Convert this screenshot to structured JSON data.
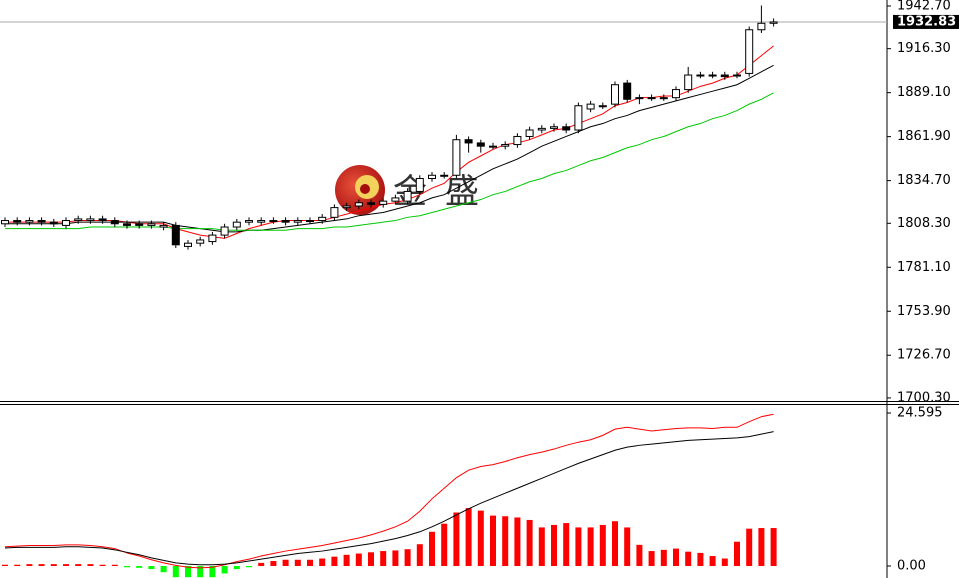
{
  "chart_data": [
    {
      "type": "candlestick",
      "watermark": "金盛",
      "open": [
        1808,
        1810,
        1809,
        1810,
        1809,
        1807,
        1810,
        1810,
        1811,
        1810,
        1808,
        1808,
        1807,
        1806,
        1807,
        1794,
        1796,
        1797,
        1801,
        1806,
        1809,
        1809,
        1810,
        1810,
        1809,
        1810,
        1810,
        1812,
        1818,
        1819,
        1821,
        1820,
        1822,
        1822,
        1828,
        1836,
        1838,
        1838,
        1860,
        1858,
        1856,
        1856,
        1857,
        1862,
        1866,
        1867,
        1868,
        1866,
        1879,
        1881,
        1882,
        1895,
        1886,
        1886,
        1886,
        1886,
        1891,
        1900,
        1900,
        1900,
        1900,
        1901,
        1928,
        1932
      ],
      "high": [
        1812,
        1812,
        1812,
        1812,
        1811,
        1812,
        1813,
        1813,
        1813,
        1812,
        1810,
        1810,
        1810,
        1809,
        1809,
        1798,
        1800,
        1803,
        1808,
        1811,
        1812,
        1812,
        1812,
        1812,
        1812,
        1812,
        1814,
        1820,
        1821,
        1823,
        1823,
        1824,
        1826,
        1830,
        1838,
        1840,
        1840,
        1863,
        1862,
        1860,
        1858,
        1859,
        1864,
        1868,
        1869,
        1870,
        1870,
        1883,
        1884,
        1883,
        1896,
        1897,
        1888,
        1888,
        1888,
        1893,
        1905,
        1902,
        1902,
        1902,
        1902,
        1930,
        1943,
        1935
      ],
      "low": [
        1806,
        1807,
        1807,
        1807,
        1806,
        1805,
        1808,
        1808,
        1808,
        1806,
        1805,
        1805,
        1805,
        1804,
        1793,
        1792,
        1794,
        1795,
        1799,
        1804,
        1807,
        1807,
        1808,
        1807,
        1807,
        1808,
        1808,
        1810,
        1816,
        1817,
        1818,
        1818,
        1820,
        1820,
        1826,
        1834,
        1836,
        1836,
        1852,
        1852,
        1854,
        1854,
        1855,
        1860,
        1864,
        1865,
        1864,
        1864,
        1877,
        1879,
        1880,
        1883,
        1882,
        1884,
        1884,
        1884,
        1889,
        1898,
        1898,
        1897,
        1898,
        1899,
        1926,
        1930
      ],
      "close": [
        1810,
        1809,
        1810,
        1809,
        1808,
        1810,
        1811,
        1811,
        1810,
        1808,
        1807,
        1807,
        1808,
        1807,
        1795,
        1796,
        1798,
        1801,
        1806,
        1809,
        1810,
        1810,
        1810,
        1809,
        1810,
        1810,
        1812,
        1818,
        1819,
        1821,
        1820,
        1822,
        1824,
        1828,
        1836,
        1838,
        1838,
        1860,
        1858,
        1856,
        1856,
        1857,
        1862,
        1866,
        1867,
        1868,
        1866,
        1881,
        1882,
        1881,
        1894,
        1885,
        1886,
        1886,
        1886,
        1891,
        1900,
        1900,
        1900,
        1899,
        1900,
        1928,
        1932,
        1932.83
      ],
      "series": [
        {
          "color": "#ff0000",
          "values": [
            1809,
            1809,
            1809,
            1809,
            1809,
            1809,
            1810,
            1810,
            1810,
            1810,
            1809,
            1808,
            1808,
            1808,
            1805,
            1803,
            1801,
            1800,
            1799,
            1802,
            1805,
            1807,
            1809,
            1810,
            1810,
            1810,
            1810,
            1812,
            1814,
            1816,
            1818,
            1820,
            1821,
            1823,
            1826,
            1830,
            1833,
            1840,
            1846,
            1850,
            1854,
            1857,
            1858,
            1860,
            1863,
            1866,
            1867,
            1870,
            1873,
            1876,
            1881,
            1883,
            1886,
            1886,
            1887,
            1887,
            1890,
            1893,
            1895,
            1898,
            1900,
            1906,
            1912,
            1918
          ]
        },
        {
          "color": "#000000",
          "values": [
            1808,
            1808,
            1808,
            1808,
            1808,
            1808,
            1809,
            1809,
            1809,
            1809,
            1809,
            1809,
            1809,
            1809,
            1807,
            1806,
            1805,
            1804,
            1803,
            1803,
            1804,
            1804,
            1805,
            1806,
            1807,
            1808,
            1809,
            1810,
            1811,
            1813,
            1814,
            1815,
            1817,
            1819,
            1821,
            1824,
            1826,
            1830,
            1834,
            1838,
            1842,
            1845,
            1848,
            1852,
            1856,
            1859,
            1862,
            1865,
            1868,
            1870,
            1873,
            1875,
            1878,
            1880,
            1882,
            1884,
            1886,
            1888,
            1890,
            1892,
            1894,
            1898,
            1902,
            1906
          ]
        },
        {
          "color": "#00c800",
          "values": [
            1805,
            1805,
            1805,
            1805,
            1805,
            1805,
            1805,
            1806,
            1806,
            1806,
            1806,
            1806,
            1806,
            1806,
            1805,
            1805,
            1805,
            1805,
            1804,
            1804,
            1804,
            1804,
            1804,
            1804,
            1805,
            1805,
            1805,
            1806,
            1806,
            1807,
            1808,
            1809,
            1810,
            1812,
            1813,
            1815,
            1817,
            1819,
            1821,
            1823,
            1826,
            1828,
            1831,
            1834,
            1836,
            1839,
            1841,
            1844,
            1847,
            1849,
            1852,
            1855,
            1857,
            1860,
            1862,
            1865,
            1868,
            1870,
            1873,
            1875,
            1878,
            1882,
            1885,
            1889
          ]
        }
      ],
      "last_price": 1932.83,
      "ylim": [
        1698.4,
        1946.4
      ],
      "yticks": [
        {
          "value": 1942.7,
          "label": "1942.70"
        },
        {
          "value": 1916.3,
          "label": "1916.30"
        },
        {
          "value": 1889.1,
          "label": "1889.10"
        },
        {
          "value": 1861.9,
          "label": "1861.90"
        },
        {
          "value": 1834.7,
          "label": "1834.70"
        },
        {
          "value": 1808.3,
          "label": "1808.30"
        },
        {
          "value": 1781.1,
          "label": "1781.10"
        },
        {
          "value": 1753.9,
          "label": "1753.90"
        },
        {
          "value": 1726.7,
          "label": "1726.70"
        },
        {
          "value": 1700.3,
          "label": "1700.30"
        }
      ]
    },
    {
      "type": "macd",
      "values": [
        0.2,
        0.2,
        0.3,
        0.3,
        0.3,
        0.3,
        0.3,
        0.3,
        0.2,
        0.2,
        -0.2,
        -0.3,
        -0.5,
        -1,
        -1.8,
        -1.8,
        -1.8,
        -1.8,
        -1.2,
        -0.5,
        -0.2,
        0.5,
        0.8,
        1,
        1,
        1,
        1.2,
        1.5,
        1.8,
        2,
        2.2,
        2.4,
        2.5,
        2.7,
        3.5,
        5.5,
        6.8,
        8.6,
        9.3,
        8.9,
        8.1,
        8,
        7.8,
        7.4,
        6.2,
        6.6,
        6.9,
        6.2,
        6.2,
        6.6,
        7.2,
        6.2,
        3.4,
        2.4,
        2.6,
        2.8,
        2.3,
        2.1,
        1.6,
        1.2,
        3.9,
        6,
        6.1,
        6.1
      ],
      "positive_color": "#ff0000",
      "negative_color": "#00ff00",
      "series": [
        {
          "color": "#ff0000",
          "values": [
            3.1,
            3.2,
            3.3,
            3.3,
            3.3,
            3.4,
            3.4,
            3.3,
            3.1,
            2.8,
            2.1,
            1.6,
            1,
            0.5,
            0.1,
            -0.2,
            -0.3,
            -0.2,
            0.2,
            0.7,
            1.1,
            1.6,
            2,
            2.4,
            2.7,
            3,
            3.3,
            3.7,
            4.1,
            4.5,
            5,
            5.6,
            6.3,
            7.2,
            8.8,
            10.8,
            12.5,
            14.2,
            15.4,
            16,
            16.3,
            16.8,
            17.4,
            17.9,
            18.3,
            18.8,
            19.4,
            19.9,
            20.3,
            21,
            22,
            22.3,
            22,
            21.7,
            21.9,
            22.1,
            22.2,
            22.2,
            22.1,
            22.3,
            22.3,
            23.2,
            24,
            24.4
          ]
        },
        {
          "color": "#000000",
          "values": [
            2.9,
            3,
            3,
            3,
            3,
            3.1,
            3.1,
            3,
            2.9,
            2.6,
            2.2,
            1.8,
            1.3,
            0.9,
            0.5,
            0.3,
            0.2,
            0.2,
            0.3,
            0.5,
            0.8,
            1.1,
            1.4,
            1.7,
            2,
            2.2,
            2.4,
            2.7,
            3,
            3.3,
            3.6,
            4,
            4.4,
            4.9,
            5.5,
            6.3,
            7.2,
            8.2,
            9.2,
            10.1,
            10.9,
            11.7,
            12.5,
            13.3,
            14.1,
            14.9,
            15.7,
            16.5,
            17.2,
            17.9,
            18.6,
            19.1,
            19.4,
            19.6,
            19.8,
            20,
            20.2,
            20.3,
            20.4,
            20.5,
            20.6,
            20.8,
            21.2,
            21.6
          ]
        }
      ],
      "ylim": [
        -1.93,
        25.88
      ],
      "yticks": [
        24.595,
        {
          "value": 0,
          "label": "0.00"
        }
      ]
    }
  ]
}
